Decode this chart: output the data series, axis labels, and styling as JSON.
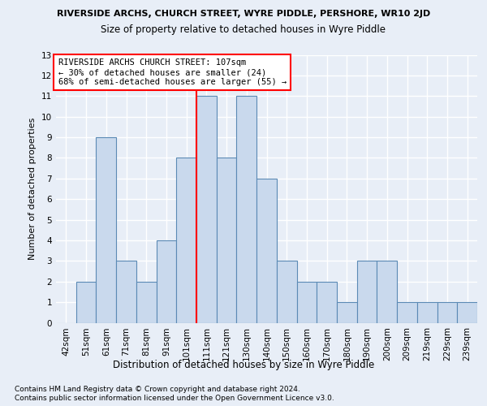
{
  "title_line1": "RIVERSIDE ARCHS, CHURCH STREET, WYRE PIDDLE, PERSHORE, WR10 2JD",
  "title_line2": "Size of property relative to detached houses in Wyre Piddle",
  "xlabel": "Distribution of detached houses by size in Wyre Piddle",
  "ylabel": "Number of detached properties",
  "categories": [
    "42sqm",
    "51sqm",
    "61sqm",
    "71sqm",
    "81sqm",
    "91sqm",
    "101sqm",
    "111sqm",
    "121sqm",
    "130sqm",
    "140sqm",
    "150sqm",
    "160sqm",
    "170sqm",
    "180sqm",
    "190sqm",
    "200sqm",
    "209sqm",
    "219sqm",
    "229sqm",
    "239sqm"
  ],
  "values": [
    0,
    2,
    9,
    3,
    2,
    4,
    8,
    11,
    8,
    11,
    7,
    3,
    2,
    2,
    1,
    3,
    3,
    1,
    1,
    1,
    1
  ],
  "bar_color": "#c9d9ed",
  "bar_edge_color": "#5b8ab5",
  "annotation_title": "RIVERSIDE ARCHS CHURCH STREET: 107sqm",
  "annotation_line2": "← 30% of detached houses are smaller (24)",
  "annotation_line3": "68% of semi-detached houses are larger (55) →",
  "ylim": [
    0,
    13
  ],
  "yticks": [
    0,
    1,
    2,
    3,
    4,
    5,
    6,
    7,
    8,
    9,
    10,
    11,
    12,
    13
  ],
  "footnote1": "Contains HM Land Registry data © Crown copyright and database right 2024.",
  "footnote2": "Contains public sector information licensed under the Open Government Licence v3.0.",
  "background_color": "#e8eef7",
  "plot_background": "#e8eef7",
  "grid_color": "white",
  "title1_fontsize": 8.0,
  "title2_fontsize": 8.5,
  "ylabel_fontsize": 8.0,
  "xlabel_fontsize": 8.5,
  "tick_fontsize": 7.5,
  "annot_fontsize": 7.5,
  "footnote_fontsize": 6.5
}
